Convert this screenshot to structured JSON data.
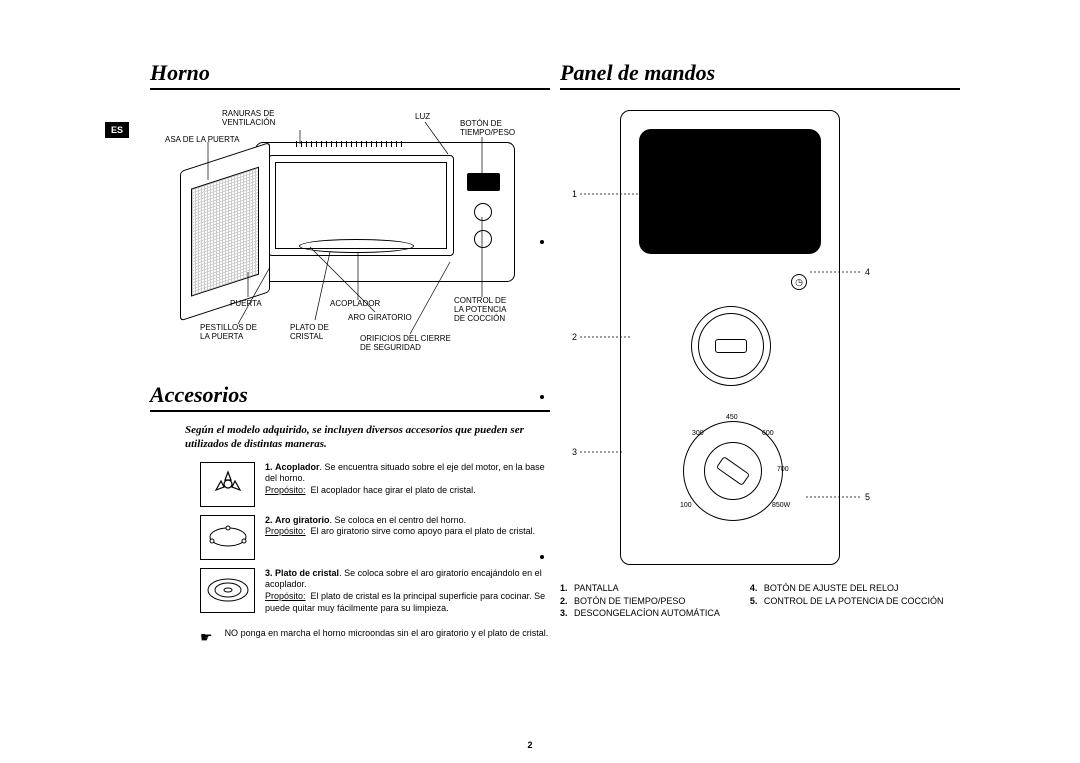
{
  "lang_badge": "ES",
  "page_number": "2",
  "left": {
    "title1": "Horno",
    "title2": "Accesorios",
    "oven_labels": {
      "ranuras": "RANURAS DE\nVENTILACIÓN",
      "asa": "ASA DE LA PUERTA",
      "luz": "LUZ",
      "boton_tiempo": "BOTÓN DE\nTIEMPO/PESO",
      "puerta": "PUERTA",
      "acoplador": "ACOPLADOR",
      "control_potencia": "CONTROL DE\nLA POTENCIA\nDE COCCIÓN",
      "pestillos": "PESTILLOS DE\nLA PUERTA",
      "plato": "PLATO DE\nCRISTAL",
      "aro": "ARO GIRATORIO",
      "orificios": "ORIFICIOS DEL CIERRE\nDE SEGURIDAD"
    },
    "accesorios_intro": "Según el modelo adquirido, se incluyen diversos accesorios que pueden ser utilizados de distintas maneras.",
    "acc": [
      {
        "num": "1.",
        "title": "Acoplador",
        "desc1": ". Se encuentra situado sobre el eje del motor, en la base del horno.",
        "purpose_label": "Propósito:",
        "purpose": "El acoplador hace girar el plato de cristal."
      },
      {
        "num": "2.",
        "title": "Aro giratorio",
        "desc1": ". Se coloca en el centro del horno.",
        "purpose_label": "Propósito:",
        "purpose": "El aro giratorio sirve como apoyo para el plato de cristal."
      },
      {
        "num": "3.",
        "title": "Plato de cristal",
        "desc1": ". Se coloca sobre el aro giratorio encajándolo en el acoplador.",
        "purpose_label": "Propósito:",
        "purpose": "El plato de cristal es la principal superficie para cocinar. Se puede quitar muy fácilmente para su limpieza."
      }
    ],
    "note": "NO ponga en marcha el horno microondas sin el aro giratorio y el plato de cristal."
  },
  "right": {
    "title": "Panel de mandos",
    "watt_marks": [
      "100",
      "300",
      "450",
      "600",
      "700",
      "850W"
    ],
    "callout_nums": [
      "1",
      "2",
      "3",
      "4",
      "5"
    ],
    "legend_left": [
      {
        "n": "1.",
        "t": "PANTALLA"
      },
      {
        "n": "2.",
        "t": "BOTÓN DE TIEMPO/PESO"
      },
      {
        "n": "3.",
        "t": "DESCONGELACÍON AUTOMÁTICA"
      }
    ],
    "legend_right": [
      {
        "n": "4.",
        "t": "BOTÓN DE AJUSTE DEL RELOJ"
      },
      {
        "n": "5.",
        "t": "CONTROL DE LA POTENCIA DE COCCIÓN"
      }
    ]
  }
}
